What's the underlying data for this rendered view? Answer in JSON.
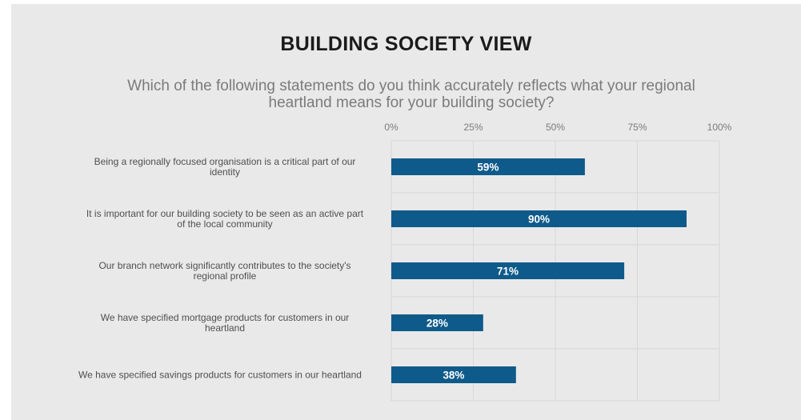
{
  "colors": {
    "bar": "#0e5a8a",
    "panel": "#e9e9e9",
    "grid": "#d7d7d7"
  },
  "chart_data": {
    "type": "bar",
    "orientation": "horizontal",
    "title": "BUILDING SOCIETY VIEW",
    "subtitle": "Which of the following statements do you think accurately reflects what your regional heartland means for your building society?",
    "categories": [
      [
        "Being a regionally focused organisation is a critical part of our",
        "identity"
      ],
      [
        "It is important for our building society to be seen as an active part",
        "of the local community"
      ],
      [
        "Our branch network significantly contributes to the society's",
        "regional profile"
      ],
      [
        "We have specified mortgage products for customers in our",
        "heartland"
      ],
      [
        "We have specified savings products for customers in our heartland"
      ]
    ],
    "values": [
      59,
      90,
      71,
      28,
      38
    ],
    "data_labels": [
      "59%",
      "90%",
      "71%",
      "28%",
      "38%"
    ],
    "xlim": [
      0,
      100
    ],
    "x_ticks": [
      0,
      25,
      50,
      75,
      100
    ],
    "x_tick_labels": [
      "0%",
      "25%",
      "50%",
      "75%",
      "100%"
    ],
    "x_axis_position": "top",
    "grid": true,
    "legend": "none"
  }
}
